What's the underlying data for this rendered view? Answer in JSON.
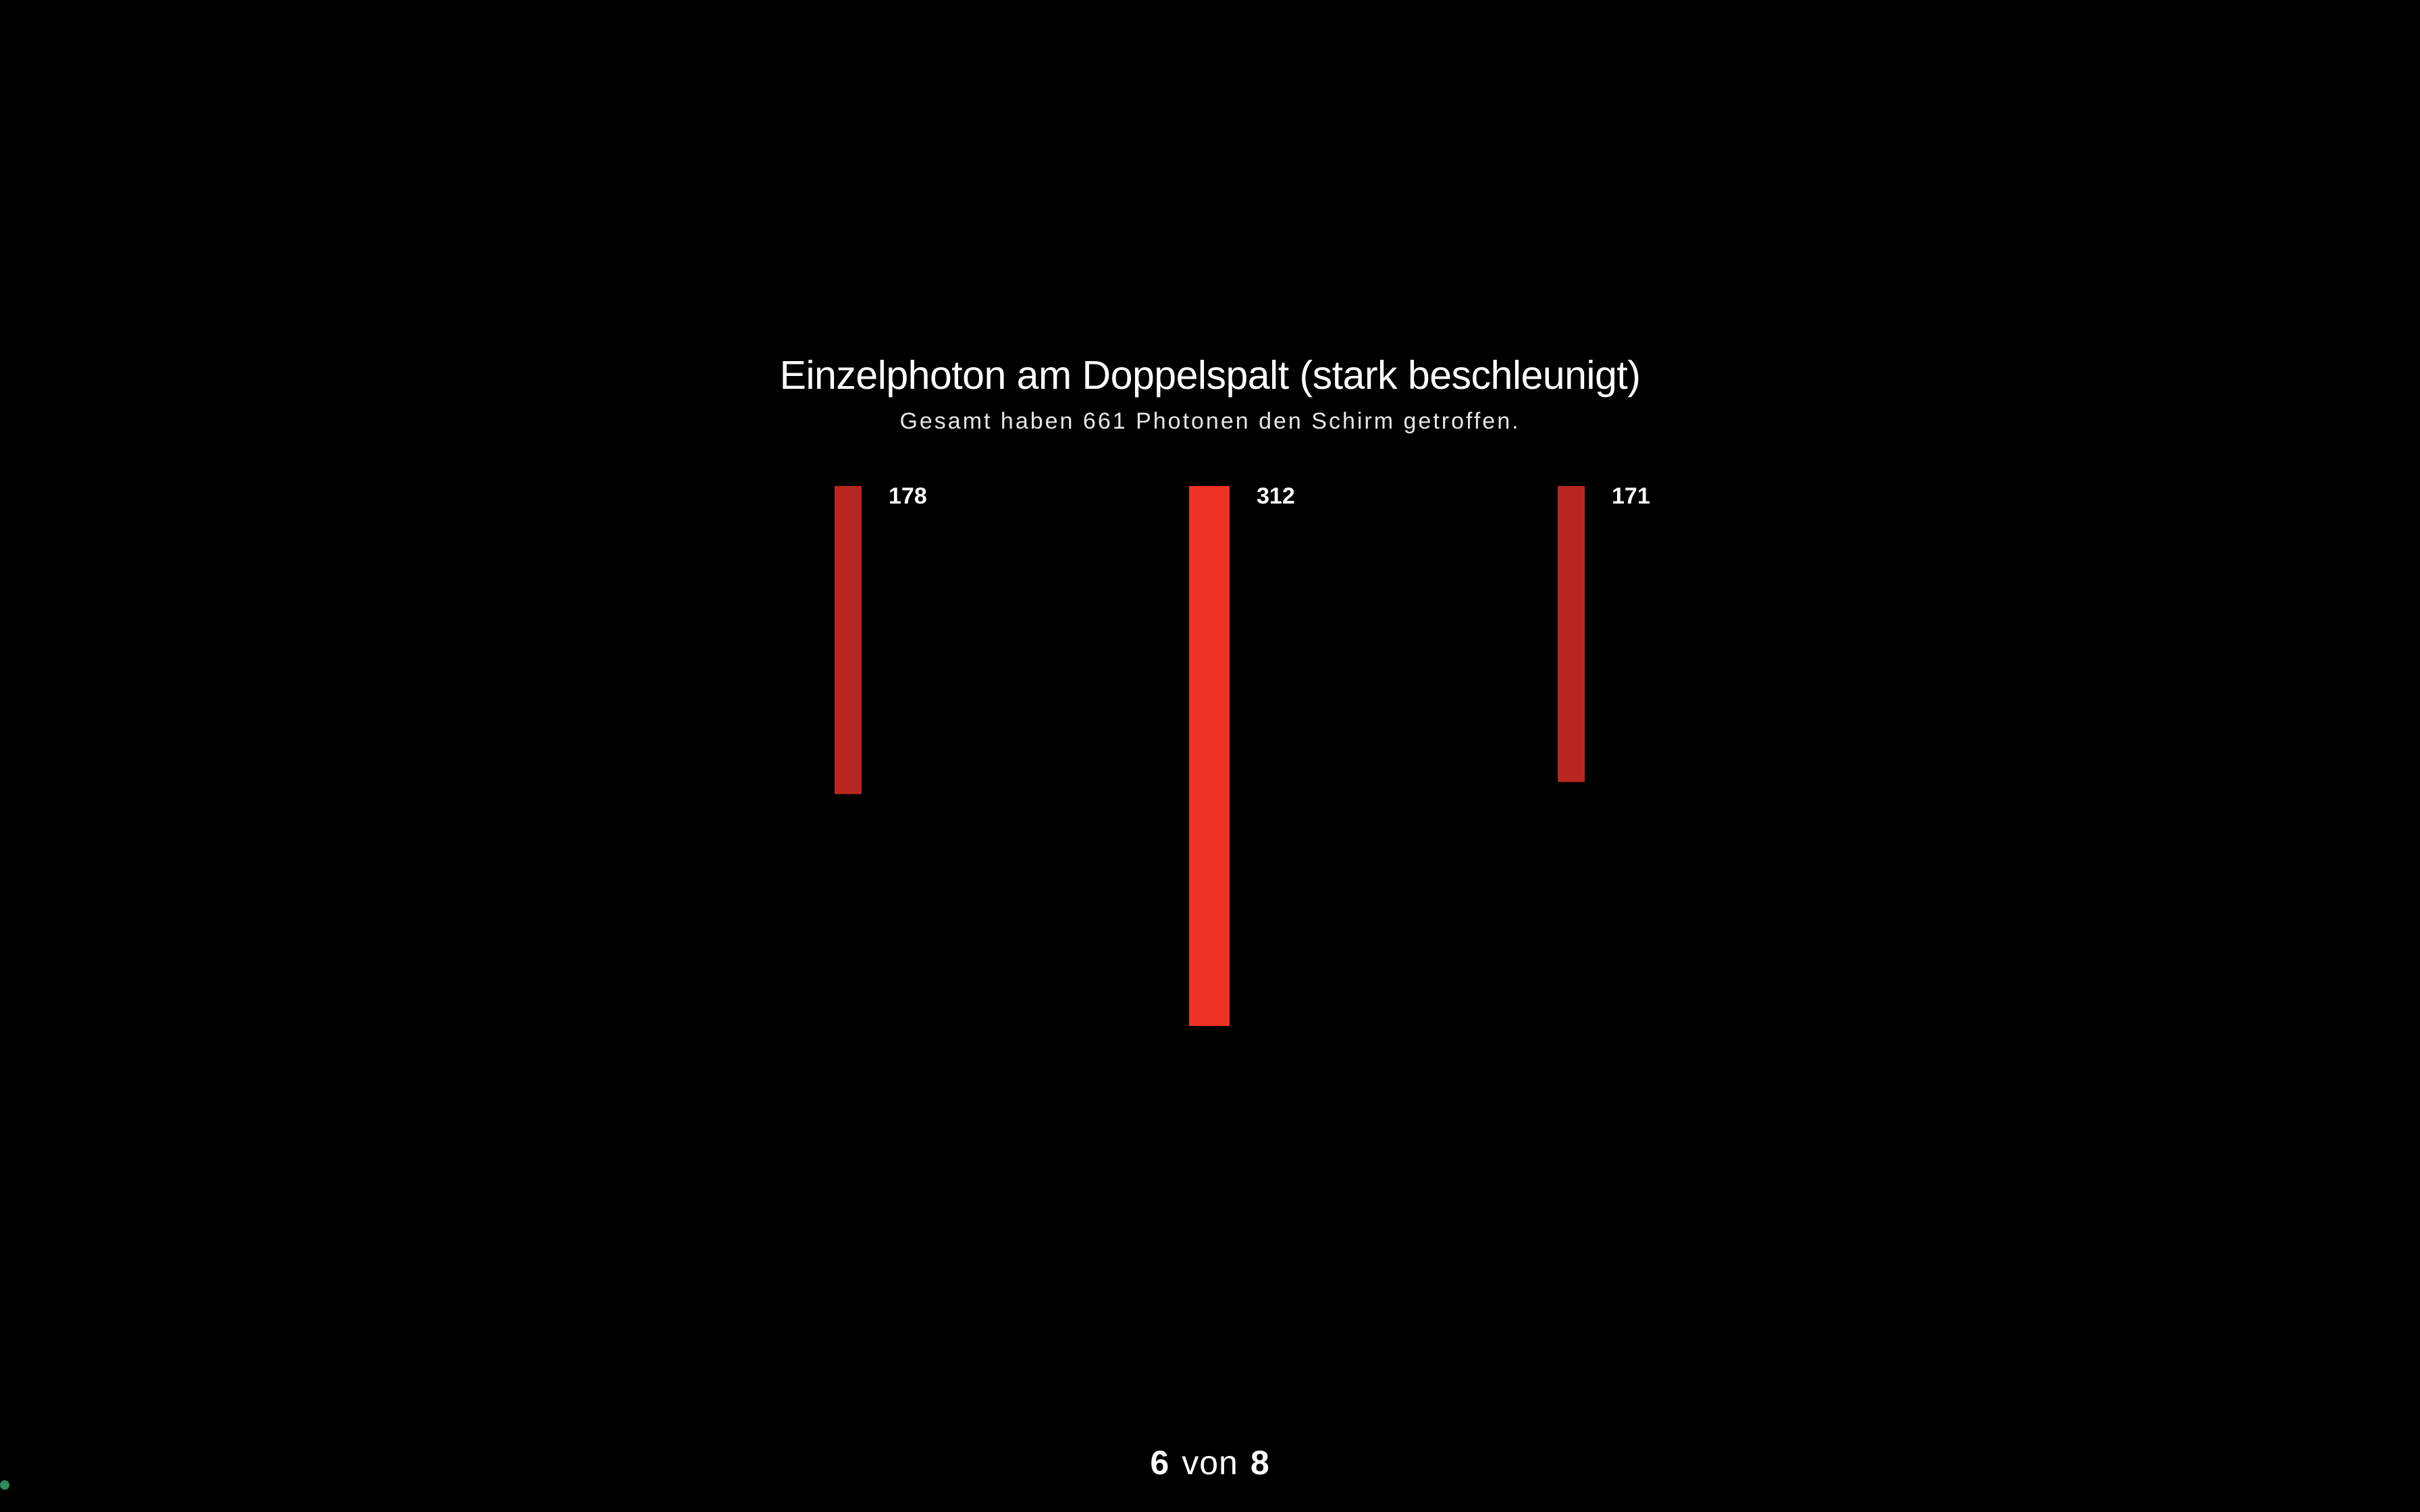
{
  "header": {
    "title": "Einzelphoton am Doppelspalt (stark beschleunigt)",
    "subtitle": "Gesamt haben 661 Photonen den Schirm getroffen."
  },
  "pager": {
    "current": "6",
    "word": "von",
    "total": "8"
  },
  "chart_data": {
    "type": "bar",
    "orientation": "vertical-downward",
    "categories": [
      "",
      "",
      ""
    ],
    "values": [
      178,
      312,
      171
    ],
    "data_labels": [
      "178",
      "312",
      "171"
    ],
    "bar_colors": [
      "#b8271f",
      "#ec3325",
      "#b8271f"
    ],
    "title": "",
    "xlabel": "",
    "ylabel": "",
    "ylim": [
      0,
      312
    ],
    "grid": false,
    "legend": "none"
  },
  "colors": {
    "background": "#000000",
    "text": "#ffffff",
    "bar_max": "#ec3325",
    "bar_other": "#b8271f",
    "status_dot": "#2e8b57"
  }
}
